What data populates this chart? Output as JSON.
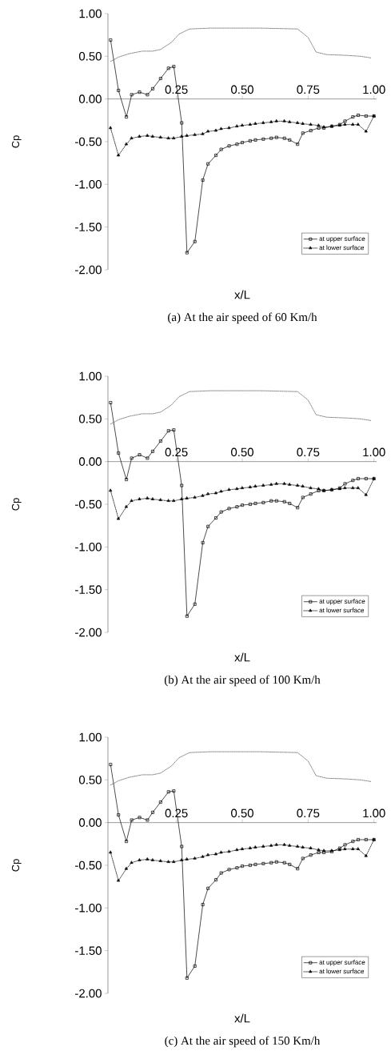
{
  "chart_data": [
    {
      "type": "line",
      "xlabel": "x/L",
      "ylabel": "Cp",
      "annotations": [
        "(a) At the air speed of 60 Km/h"
      ],
      "xlim": [
        -0.01,
        1.01
      ],
      "ylim": [
        -2,
        1
      ],
      "xticks": [
        {
          "value": 0.25,
          "label": "0.25"
        },
        {
          "value": 0.5,
          "label": "0.50"
        },
        {
          "value": 0.75,
          "label": "0.75"
        },
        {
          "value": 1,
          "label": "1.00"
        }
      ],
      "yticks": [
        {
          "value": 1,
          "label": "1.00"
        },
        {
          "value": 0.5,
          "label": "0.50"
        },
        {
          "value": 0,
          "label": "0.00"
        },
        {
          "value": -0.5,
          "label": "-0.50"
        },
        {
          "value": -1,
          "label": "-1.00"
        },
        {
          "value": -1.5,
          "label": "-1.50"
        },
        {
          "value": -2,
          "label": "-2.00"
        }
      ],
      "legend": "bottom right",
      "grid": false,
      "series": [
        {
          "name": "at upper surface",
          "color": "#000000",
          "marker": "square",
          "line_style": "solid",
          "x": [
            0.0,
            0.03,
            0.06,
            0.08,
            0.11,
            0.14,
            0.16,
            0.19,
            0.22,
            0.24,
            0.27,
            0.29,
            0.32,
            0.35,
            0.37,
            0.4,
            0.42,
            0.45,
            0.48,
            0.5,
            0.53,
            0.55,
            0.58,
            0.61,
            0.63,
            0.66,
            0.68,
            0.71,
            0.73,
            0.76,
            0.79,
            0.81,
            0.84,
            0.87,
            0.89,
            0.92,
            0.94,
            0.97,
            1.0
          ],
          "values": [
            0.69,
            0.1,
            -0.21,
            0.05,
            0.08,
            0.05,
            0.12,
            0.24,
            0.36,
            0.38,
            -0.28,
            -1.8,
            -1.67,
            -0.95,
            -0.76,
            -0.66,
            -0.59,
            -0.55,
            -0.53,
            -0.51,
            -0.49,
            -0.48,
            -0.47,
            -0.46,
            -0.45,
            -0.46,
            -0.48,
            -0.53,
            -0.4,
            -0.37,
            -0.34,
            -0.34,
            -0.32,
            -0.3,
            -0.26,
            -0.21,
            -0.19,
            -0.2,
            -0.2
          ]
        },
        {
          "name": "at lower surface",
          "color": "#000000",
          "marker": "triangle",
          "line_style": "dotted",
          "x": [
            0.0,
            0.03,
            0.06,
            0.08,
            0.11,
            0.14,
            0.16,
            0.19,
            0.22,
            0.24,
            0.27,
            0.29,
            0.32,
            0.35,
            0.37,
            0.4,
            0.42,
            0.45,
            0.48,
            0.5,
            0.53,
            0.55,
            0.58,
            0.61,
            0.63,
            0.66,
            0.68,
            0.71,
            0.73,
            0.76,
            0.79,
            0.81,
            0.84,
            0.87,
            0.89,
            0.92,
            0.94,
            0.97,
            1.0
          ],
          "values": [
            -0.34,
            -0.66,
            -0.53,
            -0.46,
            -0.44,
            -0.43,
            -0.44,
            -0.45,
            -0.46,
            -0.46,
            -0.44,
            -0.43,
            -0.42,
            -0.41,
            -0.38,
            -0.37,
            -0.35,
            -0.34,
            -0.32,
            -0.31,
            -0.3,
            -0.29,
            -0.28,
            -0.27,
            -0.26,
            -0.26,
            -0.27,
            -0.28,
            -0.29,
            -0.3,
            -0.31,
            -0.33,
            -0.32,
            -0.31,
            -0.3,
            -0.3,
            -0.3,
            -0.38,
            -0.2
          ]
        },
        {
          "color": "#555555",
          "marker": "none",
          "line_style": "dotted",
          "x": [
            0.0,
            0.03,
            0.07,
            0.12,
            0.16,
            0.19,
            0.23,
            0.26,
            0.3,
            0.38,
            0.57,
            0.71,
            0.75,
            0.78,
            0.82,
            0.9,
            0.95,
            0.99
          ],
          "values": [
            0.44,
            0.49,
            0.53,
            0.56,
            0.56,
            0.58,
            0.66,
            0.76,
            0.82,
            0.83,
            0.83,
            0.82,
            0.72,
            0.55,
            0.52,
            0.51,
            0.5,
            0.48
          ]
        }
      ]
    },
    {
      "type": "line",
      "xlabel": "x/L",
      "ylabel": "Cp",
      "annotations": [
        "(b) At the air speed of 100 Km/h"
      ],
      "xlim": [
        -0.01,
        1.01
      ],
      "ylim": [
        -2,
        1
      ],
      "xticks": [
        {
          "value": 0.25,
          "label": "0.25"
        },
        {
          "value": 0.5,
          "label": "0.50"
        },
        {
          "value": 0.75,
          "label": "0.75"
        },
        {
          "value": 1,
          "label": "1.00"
        }
      ],
      "yticks": [
        {
          "value": 1,
          "label": "1.00"
        },
        {
          "value": 0.5,
          "label": "0.50"
        },
        {
          "value": 0,
          "label": "0.00"
        },
        {
          "value": -0.5,
          "label": "-0.50"
        },
        {
          "value": -1,
          "label": "-1.00"
        },
        {
          "value": -1.5,
          "label": "-1.50"
        },
        {
          "value": -2,
          "label": "-2.00"
        }
      ],
      "legend": "bottom right",
      "grid": false,
      "series": [
        {
          "name": "at upper surface",
          "color": "#000000",
          "marker": "square",
          "line_style": "solid",
          "x": [
            0.0,
            0.03,
            0.06,
            0.08,
            0.11,
            0.14,
            0.16,
            0.19,
            0.22,
            0.24,
            0.27,
            0.29,
            0.32,
            0.35,
            0.37,
            0.4,
            0.42,
            0.45,
            0.48,
            0.5,
            0.53,
            0.55,
            0.58,
            0.61,
            0.63,
            0.66,
            0.68,
            0.71,
            0.73,
            0.76,
            0.79,
            0.81,
            0.84,
            0.87,
            0.89,
            0.92,
            0.94,
            0.97,
            1.0
          ],
          "values": [
            0.69,
            0.1,
            -0.21,
            0.04,
            0.08,
            0.04,
            0.12,
            0.24,
            0.36,
            0.37,
            -0.28,
            -1.81,
            -1.67,
            -0.95,
            -0.76,
            -0.66,
            -0.59,
            -0.55,
            -0.53,
            -0.51,
            -0.5,
            -0.49,
            -0.48,
            -0.46,
            -0.46,
            -0.47,
            -0.49,
            -0.54,
            -0.42,
            -0.38,
            -0.34,
            -0.34,
            -0.33,
            -0.31,
            -0.26,
            -0.22,
            -0.2,
            -0.2,
            -0.2
          ]
        },
        {
          "name": "at lower surface",
          "color": "#000000",
          "marker": "triangle",
          "line_style": "dotted",
          "x": [
            0.0,
            0.03,
            0.06,
            0.08,
            0.11,
            0.14,
            0.16,
            0.19,
            0.22,
            0.24,
            0.27,
            0.29,
            0.32,
            0.35,
            0.37,
            0.4,
            0.42,
            0.45,
            0.48,
            0.5,
            0.53,
            0.55,
            0.58,
            0.61,
            0.63,
            0.66,
            0.68,
            0.71,
            0.73,
            0.76,
            0.79,
            0.81,
            0.84,
            0.87,
            0.89,
            0.92,
            0.94,
            0.97,
            1.0
          ],
          "values": [
            -0.34,
            -0.67,
            -0.53,
            -0.46,
            -0.44,
            -0.43,
            -0.44,
            -0.45,
            -0.46,
            -0.46,
            -0.44,
            -0.43,
            -0.42,
            -0.4,
            -0.38,
            -0.37,
            -0.35,
            -0.33,
            -0.32,
            -0.31,
            -0.3,
            -0.29,
            -0.28,
            -0.27,
            -0.26,
            -0.26,
            -0.27,
            -0.28,
            -0.29,
            -0.31,
            -0.32,
            -0.34,
            -0.33,
            -0.32,
            -0.31,
            -0.31,
            -0.31,
            -0.39,
            -0.2
          ]
        },
        {
          "color": "#555555",
          "marker": "none",
          "line_style": "dotted",
          "x": [
            0.0,
            0.03,
            0.07,
            0.12,
            0.16,
            0.19,
            0.23,
            0.26,
            0.3,
            0.38,
            0.57,
            0.71,
            0.75,
            0.78,
            0.82,
            0.9,
            0.95,
            0.99
          ],
          "values": [
            0.44,
            0.49,
            0.53,
            0.56,
            0.56,
            0.58,
            0.66,
            0.76,
            0.82,
            0.83,
            0.83,
            0.82,
            0.72,
            0.55,
            0.52,
            0.51,
            0.5,
            0.48
          ]
        }
      ]
    },
    {
      "type": "line",
      "xlabel": "x/L",
      "ylabel": "Cp",
      "annotations": [
        "(c) At the air speed of 150 Km/h"
      ],
      "xlim": [
        -0.01,
        1.01
      ],
      "ylim": [
        -2,
        1
      ],
      "xticks": [
        {
          "value": 0.25,
          "label": "0.25"
        },
        {
          "value": 0.5,
          "label": "0.50"
        },
        {
          "value": 0.75,
          "label": "0.75"
        },
        {
          "value": 1,
          "label": "1.00"
        }
      ],
      "yticks": [
        {
          "value": 1,
          "label": "1.00"
        },
        {
          "value": 0.5,
          "label": "0.50"
        },
        {
          "value": 0,
          "label": "0.00"
        },
        {
          "value": -0.5,
          "label": "-0.50"
        },
        {
          "value": -1,
          "label": "-1.00"
        },
        {
          "value": -1.5,
          "label": "-1.50"
        },
        {
          "value": -2,
          "label": "-2.00"
        }
      ],
      "legend": "bottom right",
      "grid": false,
      "series": [
        {
          "name": "at upper surface",
          "color": "#000000",
          "marker": "square",
          "line_style": "solid",
          "x": [
            0.0,
            0.03,
            0.06,
            0.08,
            0.11,
            0.14,
            0.16,
            0.19,
            0.22,
            0.24,
            0.27,
            0.29,
            0.32,
            0.35,
            0.37,
            0.4,
            0.42,
            0.45,
            0.48,
            0.5,
            0.53,
            0.55,
            0.58,
            0.61,
            0.63,
            0.66,
            0.68,
            0.71,
            0.73,
            0.76,
            0.79,
            0.81,
            0.84,
            0.87,
            0.89,
            0.92,
            0.94,
            0.97,
            1.0
          ],
          "values": [
            0.68,
            0.09,
            -0.22,
            0.03,
            0.06,
            0.03,
            0.12,
            0.24,
            0.36,
            0.37,
            -0.28,
            -1.82,
            -1.68,
            -0.96,
            -0.77,
            -0.67,
            -0.59,
            -0.55,
            -0.53,
            -0.51,
            -0.5,
            -0.49,
            -0.48,
            -0.47,
            -0.46,
            -0.47,
            -0.49,
            -0.54,
            -0.42,
            -0.38,
            -0.35,
            -0.35,
            -0.34,
            -0.3,
            -0.26,
            -0.22,
            -0.2,
            -0.2,
            -0.2
          ]
        },
        {
          "name": "at lower surface",
          "color": "#000000",
          "marker": "triangle",
          "line_style": "dotted",
          "x": [
            0.0,
            0.03,
            0.06,
            0.08,
            0.11,
            0.14,
            0.16,
            0.19,
            0.22,
            0.24,
            0.27,
            0.29,
            0.32,
            0.35,
            0.37,
            0.4,
            0.42,
            0.45,
            0.48,
            0.5,
            0.53,
            0.55,
            0.58,
            0.61,
            0.63,
            0.66,
            0.68,
            0.71,
            0.73,
            0.76,
            0.79,
            0.81,
            0.84,
            0.87,
            0.89,
            0.92,
            0.94,
            0.97,
            1.0
          ],
          "values": [
            -0.35,
            -0.68,
            -0.54,
            -0.47,
            -0.44,
            -0.43,
            -0.44,
            -0.45,
            -0.46,
            -0.46,
            -0.44,
            -0.43,
            -0.42,
            -0.4,
            -0.38,
            -0.37,
            -0.35,
            -0.34,
            -0.32,
            -0.31,
            -0.3,
            -0.29,
            -0.28,
            -0.27,
            -0.26,
            -0.26,
            -0.27,
            -0.28,
            -0.29,
            -0.3,
            -0.32,
            -0.33,
            -0.33,
            -0.32,
            -0.31,
            -0.31,
            -0.31,
            -0.39,
            -0.2
          ]
        },
        {
          "color": "#555555",
          "marker": "none",
          "line_style": "dotted",
          "x": [
            0.0,
            0.03,
            0.07,
            0.12,
            0.16,
            0.19,
            0.23,
            0.26,
            0.3,
            0.38,
            0.57,
            0.71,
            0.75,
            0.78,
            0.82,
            0.9,
            0.95,
            0.99
          ],
          "values": [
            0.44,
            0.49,
            0.53,
            0.56,
            0.56,
            0.58,
            0.66,
            0.76,
            0.82,
            0.83,
            0.83,
            0.82,
            0.72,
            0.55,
            0.52,
            0.51,
            0.5,
            0.48
          ]
        }
      ]
    }
  ]
}
